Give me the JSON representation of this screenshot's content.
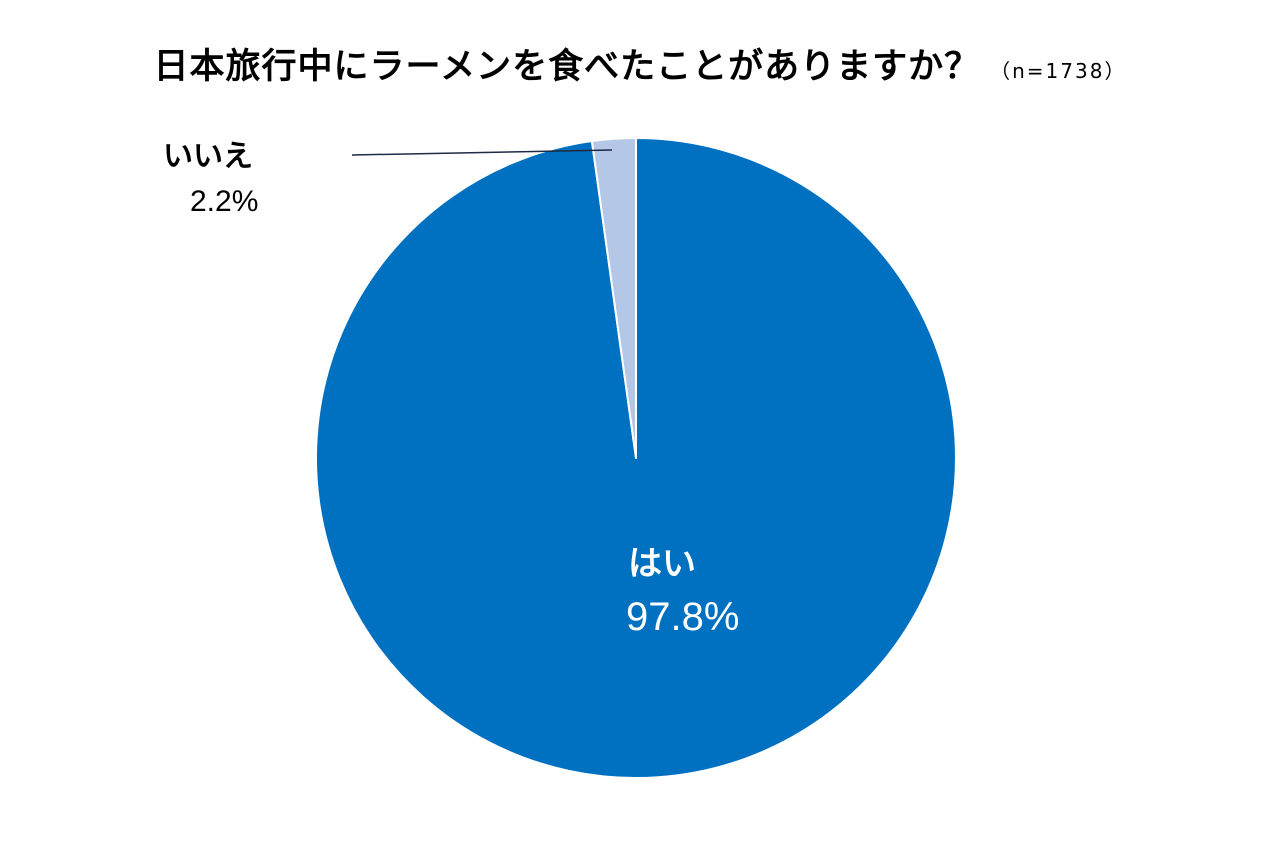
{
  "chart_data": {
    "type": "pie",
    "title": "日本旅行中にラーメンを食べたことがありますか？",
    "sample_size_label": "（n=1738）",
    "slices": [
      {
        "label": "はい",
        "value": 97.8,
        "value_label": "97.8%",
        "color": "#0070c0"
      },
      {
        "label": "いいえ",
        "value": 2.2,
        "value_label": "2.2%",
        "color": "#b4c7e7"
      }
    ],
    "legend": "none"
  }
}
